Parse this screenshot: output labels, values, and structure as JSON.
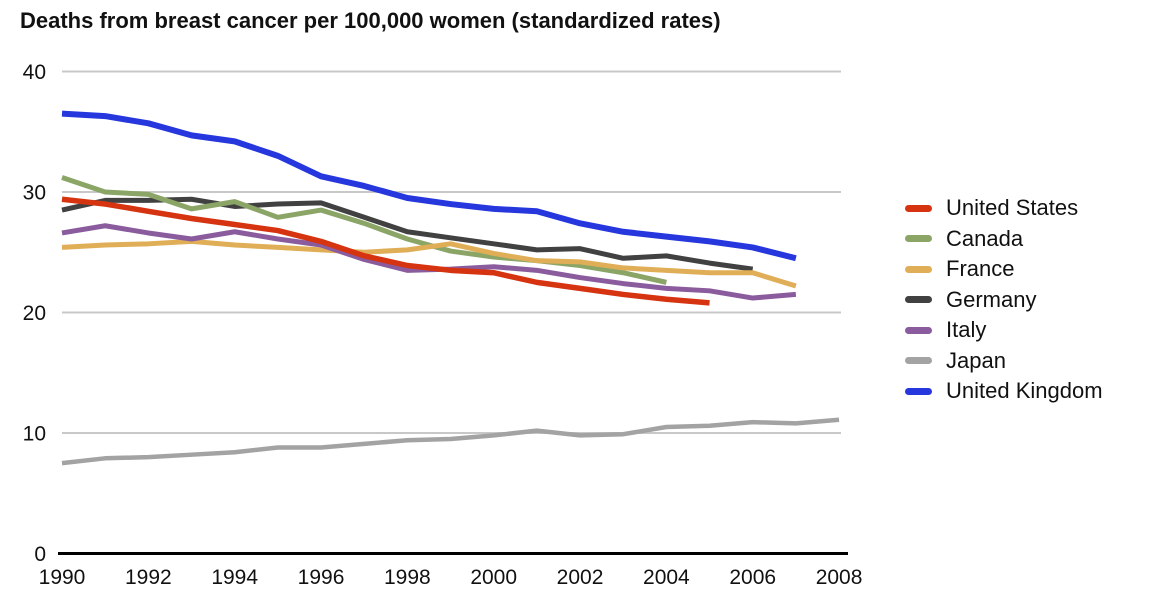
{
  "title": "Deaths from breast cancer per 100,000 women (standardized rates)",
  "chart_data": {
    "type": "line",
    "title": "Deaths from breast cancer per 100,000 women (standardized rates)",
    "xlabel": "",
    "ylabel": "",
    "x": [
      1990,
      1991,
      1992,
      1993,
      1994,
      1995,
      1996,
      1997,
      1998,
      1999,
      2000,
      2001,
      2002,
      2003,
      2004,
      2005,
      2006,
      2007,
      2008
    ],
    "x_tick_labels": [
      "1990",
      "1992",
      "1994",
      "1996",
      "1998",
      "2000",
      "2002",
      "2004",
      "2006",
      "2008"
    ],
    "y_tick_labels": [
      "0",
      "10",
      "20",
      "30",
      "40"
    ],
    "yticks": [
      0,
      10,
      20,
      30,
      40
    ],
    "ylim": [
      0,
      40
    ],
    "xlim": [
      1990,
      2008
    ],
    "grid": "horizontal",
    "gridline_color": "#c8c8c8",
    "axis_color": "#000000",
    "legend_position": "right",
    "series": [
      {
        "name": "United States",
        "color": "#d63310",
        "stroke_width": 5.5,
        "values": [
          29.4,
          29.0,
          28.4,
          27.8,
          27.3,
          26.8,
          25.9,
          24.7,
          23.9,
          23.5,
          23.3,
          22.5,
          22.0,
          21.5,
          21.1,
          20.8,
          null,
          null,
          null
        ]
      },
      {
        "name": "Canada",
        "color": "#8aa566",
        "stroke_width": 5,
        "values": [
          31.2,
          30.0,
          29.8,
          28.6,
          29.2,
          27.9,
          28.5,
          27.4,
          26.1,
          25.1,
          24.6,
          24.3,
          23.9,
          23.3,
          22.5,
          null,
          null,
          null,
          null
        ]
      },
      {
        "name": "France",
        "color": "#dfae57",
        "stroke_width": 5,
        "values": [
          25.4,
          25.6,
          25.7,
          25.9,
          25.6,
          25.4,
          25.2,
          25.0,
          25.2,
          25.7,
          24.9,
          24.3,
          24.2,
          23.7,
          23.5,
          23.3,
          23.3,
          22.2,
          null
        ]
      },
      {
        "name": "Germany",
        "color": "#414141",
        "stroke_width": 5,
        "values": [
          28.5,
          29.3,
          29.3,
          29.4,
          28.8,
          29.0,
          29.1,
          27.9,
          26.7,
          26.2,
          25.7,
          25.2,
          25.3,
          24.5,
          24.7,
          24.1,
          23.6,
          null,
          null
        ]
      },
      {
        "name": "Italy",
        "color": "#8a5c9e",
        "stroke_width": 5,
        "values": [
          26.6,
          27.2,
          26.6,
          26.1,
          26.7,
          26.1,
          25.6,
          24.4,
          23.5,
          23.6,
          23.8,
          23.5,
          22.9,
          22.4,
          22.0,
          21.8,
          21.2,
          21.5,
          null
        ]
      },
      {
        "name": "Japan",
        "color": "#a3a3a3",
        "stroke_width": 4.5,
        "values": [
          7.5,
          7.9,
          8.0,
          8.2,
          8.4,
          8.8,
          8.8,
          9.1,
          9.4,
          9.5,
          9.8,
          10.2,
          9.8,
          9.9,
          10.5,
          10.6,
          10.9,
          10.8,
          11.1
        ]
      },
      {
        "name": "United Kingdom",
        "color": "#2637dd",
        "stroke_width": 6,
        "values": [
          36.5,
          36.3,
          35.7,
          34.7,
          34.2,
          33.0,
          31.3,
          30.5,
          29.5,
          29.0,
          28.6,
          28.4,
          27.4,
          26.7,
          26.3,
          25.9,
          25.4,
          24.5,
          null
        ]
      }
    ]
  }
}
